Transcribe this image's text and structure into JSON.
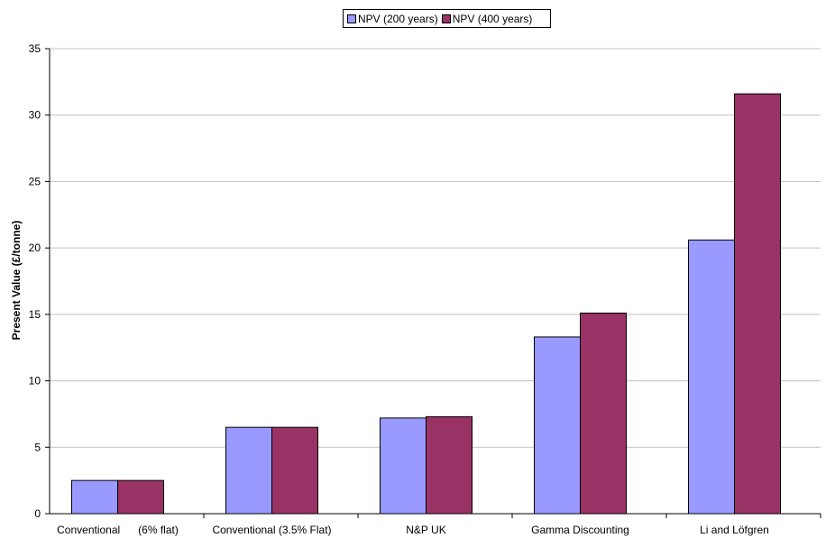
{
  "chart_data": {
    "type": "bar",
    "categories": [
      "Conventional      (6% flat)",
      "Conventional (3.5% Flat)",
      "N&P UK",
      "Gamma Discounting",
      "Li and Löfgren"
    ],
    "series": [
      {
        "name": "NPV (200 years)",
        "color": "#9999ff",
        "values": [
          2.5,
          6.5,
          7.2,
          13.3,
          20.6
        ]
      },
      {
        "name": "NPV (400 years)",
        "color": "#993366",
        "values": [
          2.5,
          6.5,
          7.3,
          15.1,
          31.6
        ]
      }
    ],
    "title": "",
    "xlabel": "",
    "ylabel": "Present Value (£/tonne)",
    "ylim": [
      0,
      35
    ],
    "yticks": [
      0,
      5,
      10,
      15,
      20,
      25,
      30,
      35
    ],
    "grid": true,
    "legend_position": "top-center"
  }
}
